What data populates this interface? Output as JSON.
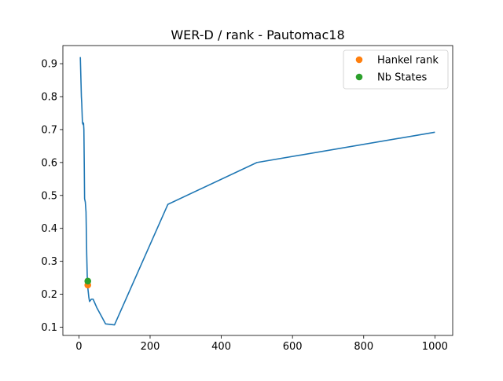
{
  "chart_data": {
    "type": "line",
    "title": "WER-D / rank - Pautomac18",
    "xlabel": "",
    "ylabel": "",
    "xlim": [
      -45,
      1050
    ],
    "ylim": [
      0.075,
      0.955
    ],
    "xticks": [
      0,
      200,
      400,
      600,
      800,
      1000
    ],
    "yticks": [
      0.1,
      0.2,
      0.3,
      0.4,
      0.5,
      0.6,
      0.7,
      0.8,
      0.9
    ],
    "grid": false,
    "legend": "top-right",
    "series": [
      {
        "color": "#1f77b4",
        "x": [
          4,
          5,
          6,
          7,
          8,
          9,
          10,
          12,
          13,
          14,
          15,
          16,
          18,
          20,
          22,
          24,
          26,
          28,
          30,
          35,
          40,
          50,
          75,
          100,
          250,
          500,
          1000
        ],
        "y": [
          0.92,
          0.88,
          0.84,
          0.8,
          0.78,
          0.75,
          0.72,
          0.715,
          0.72,
          0.7,
          0.6,
          0.49,
          0.48,
          0.45,
          0.32,
          0.23,
          0.21,
          0.19,
          0.178,
          0.185,
          0.185,
          0.16,
          0.11,
          0.107,
          0.473,
          0.6,
          0.692
        ]
      }
    ],
    "points": [
      {
        "name": "Hankel rank",
        "color": "#ff7f0e",
        "x": 25,
        "y": 0.228
      },
      {
        "name": "Nb States",
        "color": "#2ca02c",
        "x": 25,
        "y": 0.24
      }
    ]
  }
}
